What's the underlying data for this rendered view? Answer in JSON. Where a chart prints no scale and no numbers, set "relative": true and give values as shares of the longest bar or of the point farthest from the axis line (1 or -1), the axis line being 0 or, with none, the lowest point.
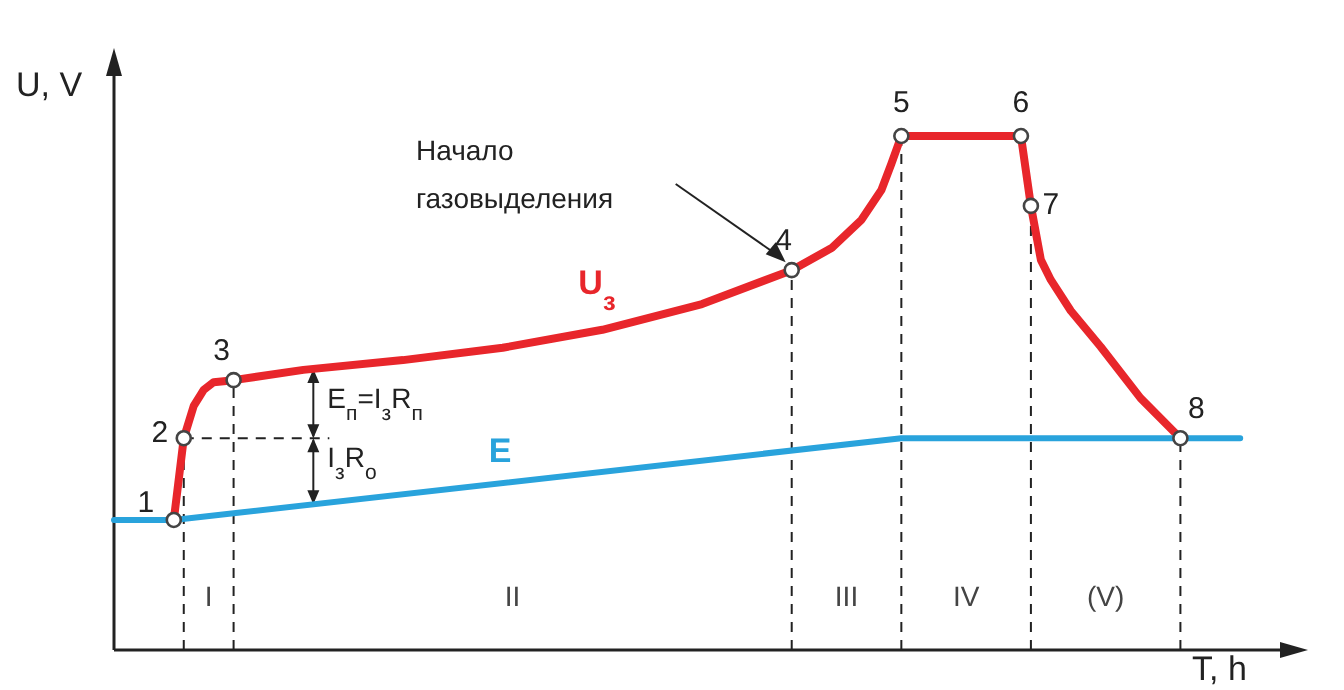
{
  "chart_data": {
    "type": "line",
    "relative": true,
    "grid": "x",
    "xlabel": "T, h",
    "ylabel": "U, V",
    "categories": [
      null,
      null,
      null,
      null,
      null,
      null,
      null,
      null,
      null,
      null,
      null,
      null,
      null,
      null,
      null,
      null,
      null,
      null,
      null,
      null,
      null,
      null,
      null,
      null,
      null,
      null,
      null,
      null,
      null,
      null,
      null,
      null,
      null,
      null,
      null,
      null,
      null,
      null,
      null,
      null,
      null,
      null,
      null,
      null,
      null,
      null,
      null,
      null,
      null,
      null,
      null,
      null,
      null,
      null,
      null,
      null,
      null,
      null,
      null,
      null,
      null,
      null,
      null,
      null,
      null,
      null,
      null,
      null,
      null,
      null,
      null,
      null,
      null,
      null,
      null,
      null,
      null,
      null,
      null,
      null,
      null,
      null,
      null,
      null,
      null,
      null,
      null,
      null,
      null,
      null,
      null,
      null,
      null,
      null,
      null,
      null,
      null,
      null,
      null,
      null,
      null,
      null,
      null,
      null,
      null,
      null,
      null,
      null,
      null,
      null,
      null,
      null,
      null,
      null,
      null,
      null,
      null,
      null,
      null,
      null
    ],
    "series": [
      {
        "name": "U$_{з}$",
        "color": "#e8262b",
        "values": [
          null,
          null,
          null,
          null,
          null,
          null,
          0.253,
          0.412,
          0.475,
          0.506,
          0.521,
          null,
          0.525,
          null,
          null,
          null,
          null,
          null,
          null,
          0.545,
          null,
          null,
          null,
          null,
          null,
          null,
          null,
          null,
          null,
          0.564,
          null,
          null,
          null,
          null,
          null,
          null,
          null,
          null,
          null,
          0.588,
          null,
          null,
          null,
          null,
          null,
          null,
          null,
          null,
          null,
          0.623,
          null,
          null,
          null,
          null,
          null,
          null,
          null,
          null,
          null,
          0.673,
          null,
          null,
          null,
          null,
          null,
          null,
          null,
          null,
          0.739,
          null,
          null,
          null,
          0.782,
          null,
          null,
          0.837,
          null,
          0.895,
          0.946,
          1,
          null,
          null,
          null,
          null,
          null,
          null,
          null,
          null,
          null,
          null,
          null,
          1,
          0.864,
          0.759,
          0.72,
          null,
          0.66,
          null,
          null,
          0.59,
          null,
          null,
          null,
          0.49,
          null,
          null,
          null,
          0.412,
          null,
          null,
          null,
          null,
          null,
          null,
          null,
          null,
          null,
          null,
          null,
          null
        ]
      },
      {
        "name": "E",
        "color": "#29a3dc",
        "values": [
          0.253,
          null,
          null,
          null,
          null,
          null,
          0.253,
          null,
          null,
          null,
          null,
          null,
          null,
          null,
          null,
          null,
          null,
          null,
          null,
          null,
          null,
          null,
          null,
          null,
          null,
          null,
          null,
          null,
          null,
          null,
          null,
          null,
          null,
          null,
          null,
          null,
          null,
          null,
          null,
          null,
          null,
          null,
          null,
          null,
          null,
          null,
          null,
          null,
          null,
          null,
          null,
          null,
          null,
          null,
          null,
          null,
          null,
          null,
          null,
          null,
          null,
          null,
          null,
          null,
          null,
          null,
          null,
          null,
          null,
          null,
          null,
          null,
          null,
          null,
          null,
          null,
          null,
          null,
          null,
          0.412,
          null,
          null,
          null,
          null,
          null,
          null,
          null,
          null,
          null,
          null,
          null,
          null,
          null,
          null,
          null,
          null,
          null,
          null,
          null,
          null,
          null,
          null,
          null,
          null,
          null,
          null,
          null,
          null,
          null,
          null,
          null,
          null,
          null,
          0.412,
          null,
          null,
          null,
          null,
          null,
          null
        ]
      }
    ],
    "annotations": [
      "1",
      "2",
      "3",
      "4",
      "5",
      "6",
      "7",
      "8",
      "Начало газовыделения",
      "E$_{п}$=I$_{з}$R$_{п}$",
      "I$_{з}$R$_{о}$",
      "I",
      "II",
      "III",
      "IV",
      "(V)"
    ]
  }
}
